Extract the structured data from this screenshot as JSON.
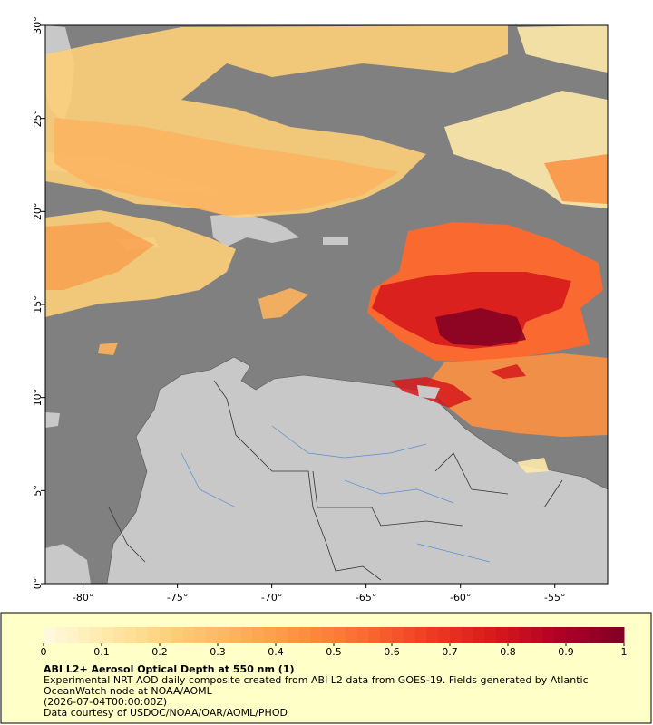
{
  "map": {
    "title": "ABI L2+ Aerosol Optical Depth at 550 nm (1)",
    "description": "Experimental NRT AOD daily composite created from ABI L2 data from GOES-19. Fields generated by Atlantic OceanWatch node at NOAA/AOML",
    "date": "(2026-07-04T00:00:00Z)",
    "credit": "Data courtesy of USDOC/NOAA/OAR/AOML/PHOD",
    "xlim": [
      -82,
      -52.2
    ],
    "ylim": [
      0,
      30
    ],
    "xticks": [
      {
        "value": -80,
        "label": "-80°"
      },
      {
        "value": -75,
        "label": "-75°"
      },
      {
        "value": -70,
        "label": "-70°"
      },
      {
        "value": -65,
        "label": "-65°"
      },
      {
        "value": -60,
        "label": "-60°"
      },
      {
        "value": -55,
        "label": "-55°"
      }
    ],
    "yticks": [
      {
        "value": 0,
        "label": "0°"
      },
      {
        "value": 5,
        "label": "5°"
      },
      {
        "value": 10,
        "label": "10°"
      },
      {
        "value": 15,
        "label": "15°"
      },
      {
        "value": 20,
        "label": "20°"
      },
      {
        "value": 25,
        "label": "25°"
      },
      {
        "value": 30,
        "label": "30°"
      }
    ],
    "colorbar": {
      "lim": [
        0,
        1
      ],
      "ticks": [
        0,
        0.1,
        0.2,
        0.3,
        0.4,
        0.5,
        0.6,
        0.7,
        0.8,
        0.9,
        1
      ],
      "colors": [
        "#fffbe0",
        "#fee9a8",
        "#fdce78",
        "#fdb25c",
        "#fc9040",
        "#fa6a30",
        "#ef3b22",
        "#d7191c",
        "#b00026",
        "#800026"
      ]
    }
  }
}
